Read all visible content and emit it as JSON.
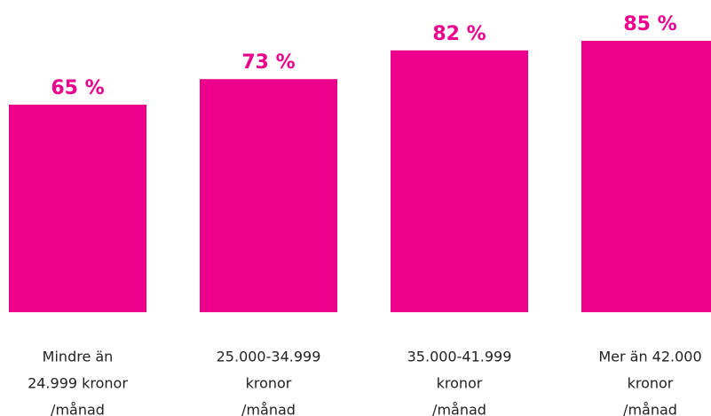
{
  "chart_data": {
    "type": "bar",
    "categories": [
      [
        "Mindre än",
        "24.999 kronor",
        "/månad"
      ],
      [
        "25.000-34.999",
        "kronor",
        "/månad"
      ],
      [
        "35.000-41.999",
        "kronor",
        "/månad"
      ],
      [
        "Mer än 42.000",
        "kronor",
        "/månad"
      ]
    ],
    "values": [
      65,
      73,
      82,
      85
    ],
    "value_labels": [
      "65 %",
      "73 %",
      "82 %",
      "85 %"
    ],
    "color": "#ec008c",
    "ylim": [
      0,
      100
    ]
  }
}
